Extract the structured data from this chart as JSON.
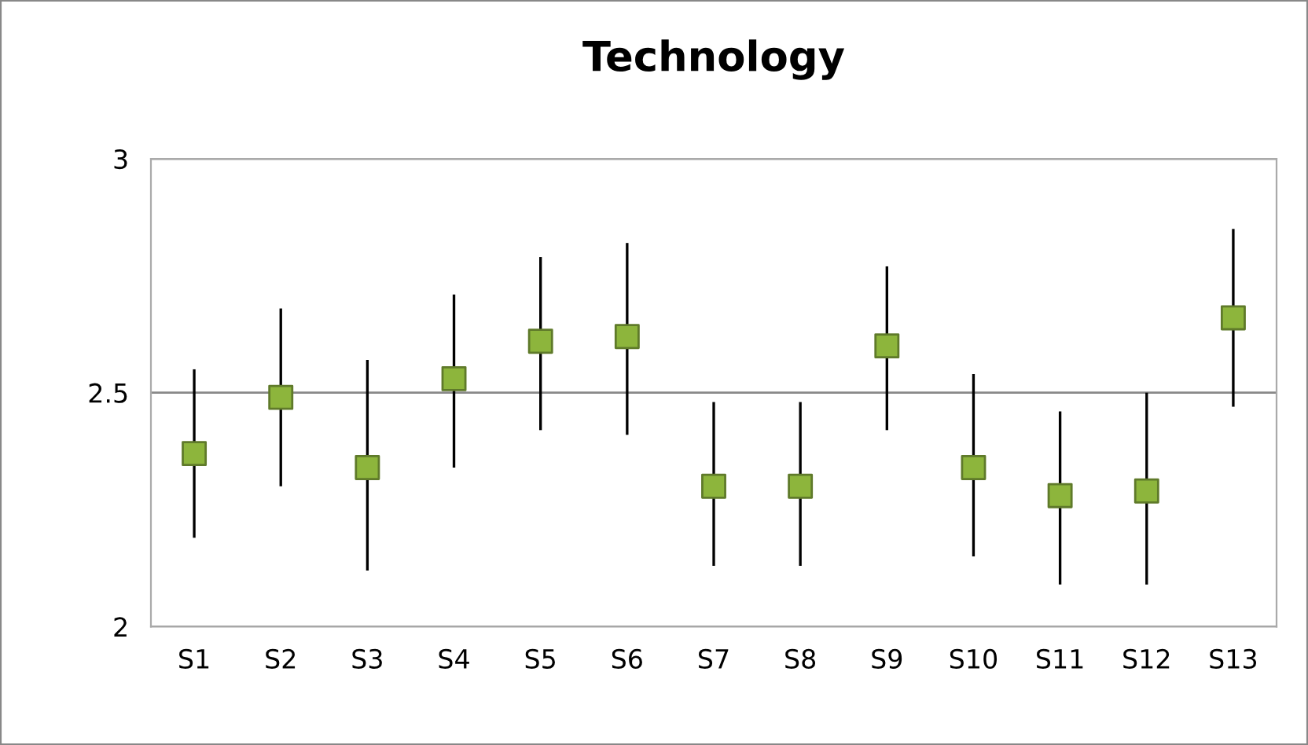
{
  "chart_data": {
    "type": "scatter",
    "title": "Technology",
    "categories": [
      "S1",
      "S2",
      "S3",
      "S4",
      "S5",
      "S6",
      "S7",
      "S8",
      "S9",
      "S10",
      "S11",
      "S12",
      "S13"
    ],
    "series": [
      {
        "color": "#8db53c",
        "values": [
          2.37,
          2.49,
          2.34,
          2.53,
          2.61,
          2.62,
          2.3,
          2.3,
          2.6,
          2.34,
          2.28,
          2.29,
          2.66
        ],
        "errors": [
          [
            2.19,
            2.55
          ],
          [
            2.3,
            2.68
          ],
          [
            2.12,
            2.57
          ],
          [
            2.34,
            2.71
          ],
          [
            2.42,
            2.79
          ],
          [
            2.41,
            2.82
          ],
          [
            2.13,
            2.48
          ],
          [
            2.13,
            2.48
          ],
          [
            2.42,
            2.77
          ],
          [
            2.15,
            2.54
          ],
          [
            2.09,
            2.46
          ],
          [
            2.09,
            2.5
          ],
          [
            2.47,
            2.85
          ]
        ]
      }
    ],
    "ylim": [
      2,
      3
    ],
    "yticks": [
      2,
      2.5,
      3
    ],
    "grid": "y",
    "marker": "square"
  }
}
